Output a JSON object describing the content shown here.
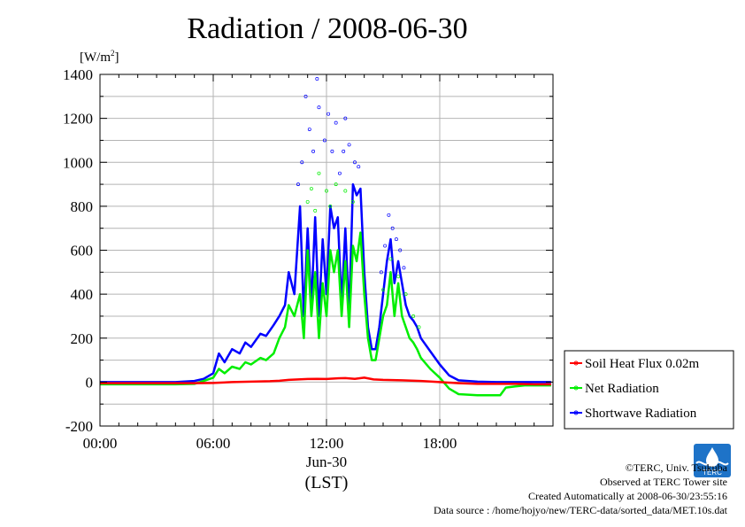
{
  "chart_data": {
    "type": "line",
    "title": "Radiation / 2008-06-30",
    "ylabel_unit": "[W/m",
    "ylabel_unit_sup": "2",
    "ylabel_unit_close": "]",
    "ylim": [
      -200,
      1400
    ],
    "yticks": [
      -200,
      0,
      200,
      400,
      600,
      800,
      1000,
      1200,
      1400
    ],
    "xlim": [
      0,
      24
    ],
    "xticks": [
      {
        "value": 0,
        "label": "00:00"
      },
      {
        "value": 6,
        "label": "06:00"
      },
      {
        "value": 12,
        "label": "12:00"
      },
      {
        "value": 18,
        "label": "18:00"
      }
    ],
    "date_label": "Jun-30",
    "xlabel": "(LST)",
    "grid": true,
    "legend_position": "bottom-right outside",
    "series": [
      {
        "name": "Soil Heat Flux 0.02m",
        "color": "#ff0000",
        "x": [
          0,
          3,
          5,
          6,
          7,
          8,
          9,
          9.5,
          10,
          10.5,
          11,
          11.5,
          12,
          12.5,
          13,
          13.5,
          14,
          14.5,
          15,
          16,
          17,
          18,
          19,
          20,
          21,
          22,
          23,
          23.9
        ],
        "values": [
          -5,
          -5,
          -5,
          -4,
          0,
          2,
          4,
          6,
          10,
          12,
          14,
          15,
          14,
          17,
          18,
          15,
          20,
          12,
          10,
          8,
          5,
          0,
          -5,
          -8,
          -8,
          -8,
          -10,
          -10
        ]
      },
      {
        "name": "Net Radiation",
        "color": "#00ee00",
        "x": [
          0,
          4,
          5,
          5.5,
          6,
          6.3,
          6.6,
          7,
          7.4,
          7.7,
          8,
          8.5,
          8.8,
          9.2,
          9.5,
          9.8,
          10,
          10.3,
          10.6,
          10.8,
          11,
          11.2,
          11.4,
          11.6,
          11.8,
          12,
          12.2,
          12.4,
          12.6,
          12.8,
          13,
          13.2,
          13.4,
          13.6,
          13.8,
          14,
          14.2,
          14.4,
          14.6,
          14.8,
          15,
          15.2,
          15.4,
          15.6,
          15.8,
          16,
          16.2,
          16.4,
          16.6,
          16.8,
          17,
          17.5,
          18,
          18.5,
          19,
          20,
          21,
          21.2,
          21.5,
          22,
          22.5,
          23,
          23.9
        ],
        "values": [
          -10,
          -10,
          -8,
          5,
          20,
          60,
          40,
          70,
          60,
          90,
          80,
          110,
          100,
          130,
          200,
          250,
          350,
          300,
          400,
          200,
          600,
          300,
          500,
          200,
          450,
          300,
          600,
          500,
          600,
          300,
          550,
          250,
          620,
          550,
          680,
          400,
          200,
          100,
          100,
          200,
          300,
          350,
          500,
          300,
          450,
          300,
          250,
          200,
          180,
          150,
          110,
          60,
          20,
          -30,
          -55,
          -60,
          -60,
          -60,
          -25,
          -20,
          -15,
          -15,
          -15
        ]
      },
      {
        "name": "Shortwave Radiation",
        "color": "#0000ff",
        "x": [
          0,
          4,
          5,
          5.5,
          6,
          6.3,
          6.6,
          7,
          7.4,
          7.7,
          8,
          8.5,
          8.8,
          9.2,
          9.5,
          9.8,
          10,
          10.3,
          10.6,
          10.8,
          11,
          11.2,
          11.4,
          11.6,
          11.8,
          12,
          12.2,
          12.4,
          12.6,
          12.8,
          13,
          13.2,
          13.4,
          13.6,
          13.8,
          14,
          14.2,
          14.4,
          14.6,
          14.8,
          15,
          15.2,
          15.4,
          15.6,
          15.8,
          16,
          16.2,
          16.4,
          16.6,
          16.8,
          17,
          17.5,
          18,
          18.5,
          19,
          20,
          21,
          22,
          23,
          23.9
        ],
        "values": [
          0,
          0,
          5,
          15,
          40,
          130,
          90,
          150,
          130,
          180,
          160,
          220,
          210,
          260,
          300,
          350,
          500,
          400,
          800,
          300,
          700,
          350,
          750,
          300,
          650,
          400,
          800,
          700,
          750,
          350,
          700,
          300,
          900,
          850,
          880,
          500,
          250,
          150,
          150,
          250,
          400,
          550,
          650,
          450,
          550,
          450,
          350,
          300,
          280,
          250,
          200,
          140,
          80,
          30,
          8,
          2,
          0,
          0,
          0,
          0
        ]
      }
    ],
    "scatter_samples": {
      "shortwave": [
        [
          10.9,
          1300
        ],
        [
          11.1,
          1150
        ],
        [
          11.5,
          1380
        ],
        [
          11.6,
          1250
        ],
        [
          11.9,
          1100
        ],
        [
          12.1,
          1220
        ],
        [
          12.3,
          1050
        ],
        [
          12.5,
          1180
        ],
        [
          12.7,
          950
        ],
        [
          13.0,
          1200
        ],
        [
          13.2,
          1080
        ],
        [
          13.5,
          1000
        ],
        [
          13.7,
          980
        ],
        [
          10.5,
          900
        ],
        [
          10.7,
          1000
        ],
        [
          11.3,
          1050
        ],
        [
          12.9,
          1050
        ],
        [
          15.3,
          760
        ],
        [
          15.5,
          700
        ],
        [
          15.7,
          650
        ],
        [
          15.9,
          600
        ],
        [
          16.1,
          520
        ],
        [
          14.9,
          500
        ],
        [
          15.1,
          620
        ]
      ],
      "net": [
        [
          11.0,
          820
        ],
        [
          11.2,
          880
        ],
        [
          11.6,
          950
        ],
        [
          12.0,
          870
        ],
        [
          12.5,
          900
        ],
        [
          13.0,
          870
        ],
        [
          13.4,
          820
        ],
        [
          11.4,
          780
        ],
        [
          12.2,
          800
        ],
        [
          15.4,
          560
        ],
        [
          15.8,
          480
        ],
        [
          16.2,
          400
        ],
        [
          16.6,
          300
        ],
        [
          16.9,
          250
        ],
        [
          15.0,
          420
        ]
      ]
    }
  },
  "footer": {
    "copyright": "©TERC, Univ. Tsukuba",
    "observed": "Observed at TERC Tower site",
    "created": "Created Automatically at 2008-06-30/23:55:16",
    "source": "Data source : /home/hojyo/new/TERC-data/sorted_data/MET.10s.dat"
  },
  "logo": {
    "text": "TERC",
    "color": "#1e73c8"
  }
}
